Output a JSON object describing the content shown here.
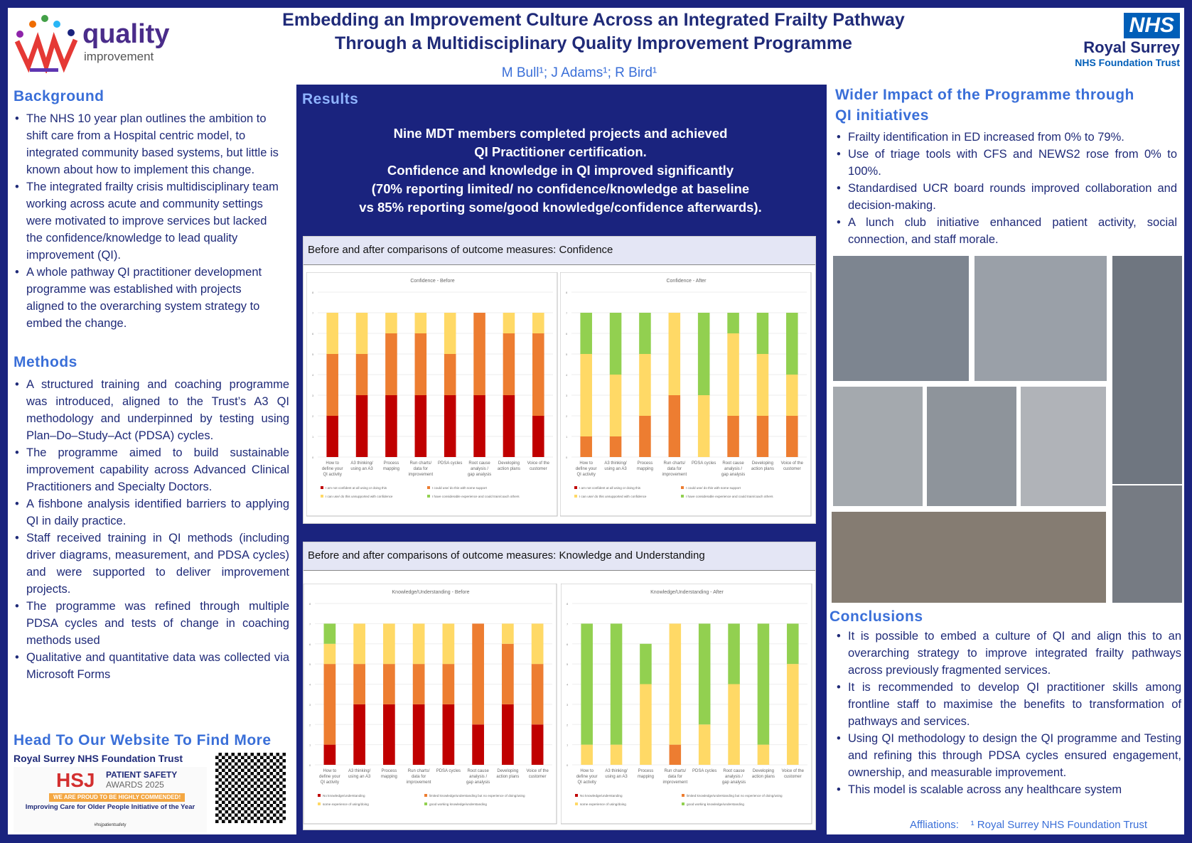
{
  "header": {
    "title_line1": "Embedding an Improvement Culture Across an Integrated Frailty Pathway",
    "title_line2": "Through a Multidisciplinary Quality Improvement Programme",
    "authors": "M Bull¹; J Adams¹;  R Bird¹",
    "qi_logo": {
      "word1": "quality",
      "word2": "improvement"
    },
    "nhs_logo": {
      "badge": "NHS",
      "name": "Royal Surrey",
      "sub": "NHS Foundation Trust"
    }
  },
  "background": {
    "heading": "Background",
    "items": [
      "The NHS 10 year plan outlines the ambition to shift care from a Hospital centric model, to integrated community based systems, but little is known about how to implement this change.",
      "The integrated frailty crisis multidisciplinary team working across acute and community settings were motivated to improve services but lacked the confidence/knowledge to lead quality improvement (QI).",
      "A whole pathway QI practitioner development programme was established with projects aligned to the overarching system strategy to embed the change."
    ]
  },
  "methods": {
    "heading": "Methods",
    "items": [
      "A structured training and coaching programme was introduced, aligned to the Trust’s A3 QI methodology and underpinned by testing using Plan–Do–Study–Act (PDSA) cycles.",
      "The programme aimed to build sustainable improvement capability across Advanced Clinical Practitioners and Specialty Doctors.",
      "A fishbone analysis identified barriers to applying QI in daily practice.",
      "Staff received training in QI methods (including driver diagrams, measurement, and PDSA cycles) and were supported to deliver improvement projects.",
      "The programme was refined through multiple PDSA cycles and tests of change in coaching methods used",
      "Qualitative and quantitative data was collected via Microsoft Forms"
    ]
  },
  "website": {
    "heading": "Head To Our Website To Find More",
    "trust": "Royal Surrey NHS Foundation Trust",
    "award": {
      "hsj": "HSJ",
      "line1": "PATIENT SAFETY",
      "line2": "AWARDS 2025",
      "banner": "WE ARE PROUD TO BE HIGHLY COMMENDED!",
      "category": "Improving Care for Older People Initiative of the Year",
      "hashtag": "#hsjpatientsafety"
    }
  },
  "results": {
    "heading": "Results",
    "lines": [
      "Nine MDT members completed projects and achieved",
      "QI Practitioner certification.",
      "Confidence and knowledge in QI improved significantly",
      "(70% reporting limited/ no confidence/knowledge at baseline",
      "vs 85% reporting some/good knowledge/confidence afterwards)."
    ],
    "panel1_title": "Before and after comparisons of outcome measures: Confidence",
    "panel2_title": "Before and after comparisons of outcome measures: Knowledge and Understanding"
  },
  "colors": {
    "red": "#c00000",
    "orange": "#ed7d31",
    "yellow": "#ffd966",
    "green": "#92d050",
    "navy": "#1a237e",
    "accent": "#3a6fd8"
  },
  "chart_data": [
    {
      "type": "bar",
      "stacked": true,
      "title": "Confidence - Before",
      "ylim": [
        0,
        8
      ],
      "categories": [
        "How to define your QI activity",
        "A3 thinking/ using an A3",
        "Process mapping",
        "Run charts/ data for improvement",
        "PDSA cycles",
        "Root cause analysis / gap analysis",
        "Developing action plans",
        "Voice of the customer"
      ],
      "series": [
        {
          "name": "I am not confident at all using or doing this",
          "values": [
            2,
            3,
            3,
            3,
            3,
            3,
            3,
            2
          ]
        },
        {
          "name": "I could use/ do this with some support",
          "values": [
            3,
            2,
            3,
            3,
            2,
            4,
            3,
            4
          ]
        },
        {
          "name": "I can use/ do this unsupported with confidence",
          "values": [
            2,
            2,
            1,
            1,
            2,
            0,
            1,
            1
          ]
        },
        {
          "name": "I have considerable experience and could train/coach others",
          "values": [
            0,
            0,
            0,
            0,
            0,
            0,
            0,
            0
          ]
        }
      ]
    },
    {
      "type": "bar",
      "stacked": true,
      "title": "Confidence - After",
      "ylim": [
        0,
        8
      ],
      "categories": [
        "How to define your QI activity",
        "A3 thinking/ using an A3",
        "Process mapping",
        "Run charts/ data for improvement",
        "PDSA cycles",
        "Root cause analysis / gap analysis",
        "Developing action plans",
        "Voice of the customer"
      ],
      "series": [
        {
          "name": "I am not confident at all using or doing this",
          "values": [
            0,
            0,
            0,
            0,
            0,
            0,
            0,
            0
          ]
        },
        {
          "name": "I could use/ do this with some support",
          "values": [
            1,
            1,
            2,
            3,
            0,
            2,
            2,
            2
          ]
        },
        {
          "name": "I can use/ do this unsupported with confidence",
          "values": [
            4,
            3,
            3,
            4,
            3,
            4,
            3,
            2
          ]
        },
        {
          "name": "I have considerable experience and could train/coach others",
          "values": [
            2,
            3,
            2,
            0,
            4,
            1,
            2,
            3
          ]
        }
      ]
    },
    {
      "type": "bar",
      "stacked": true,
      "title": "Knowledge/Understanding - Before",
      "ylim": [
        0,
        8
      ],
      "categories": [
        "How to define your QI activity",
        "A3 thinking/ using an A3",
        "Process mapping",
        "Run charts/ data for improvement",
        "PDSA cycles",
        "Root cause analysis / gap analysis",
        "Developing action plans",
        "Voice of the customer"
      ],
      "series": [
        {
          "name": "No knowledge/understanding",
          "values": [
            1,
            3,
            3,
            3,
            3,
            2,
            3,
            2
          ]
        },
        {
          "name": "limited knowledge/understanding but no experience of doing/using",
          "values": [
            4,
            2,
            2,
            2,
            2,
            5,
            3,
            3
          ]
        },
        {
          "name": "some experience of using/doing",
          "values": [
            1,
            2,
            2,
            2,
            2,
            0,
            1,
            2
          ]
        },
        {
          "name": "good working knowledge/understanding",
          "values": [
            1,
            0,
            0,
            0,
            0,
            0,
            0,
            0
          ]
        }
      ]
    },
    {
      "type": "bar",
      "stacked": true,
      "title": "Knowledge/Understanding - After",
      "ylim": [
        0,
        8
      ],
      "categories": [
        "How to define your QI activity",
        "A3 thinking/ using an A3",
        "Process mapping",
        "Run charts/ data for improvement",
        "PDSA cycles",
        "Root cause analysis / gap analysis",
        "Developing action plans",
        "Voice of the customer"
      ],
      "series": [
        {
          "name": "No knowledge/understanding",
          "values": [
            0,
            0,
            0,
            0,
            0,
            0,
            0,
            0
          ]
        },
        {
          "name": "limited knowledge/understanding but no experience of doing/using",
          "values": [
            0,
            0,
            0,
            1,
            0,
            0,
            0,
            0
          ]
        },
        {
          "name": "some experience of using/doing",
          "values": [
            1,
            1,
            4,
            6,
            2,
            4,
            1,
            5
          ]
        },
        {
          "name": "good working knowledge/understanding",
          "values": [
            6,
            6,
            2,
            0,
            5,
            3,
            6,
            2
          ]
        }
      ]
    }
  ],
  "wider": {
    "heading_line1": "Wider Impact of the Programme through",
    "heading_line2": "QI initiatives",
    "items": [
      "Frailty identification in ED increased from 0% to 79%.",
      "Use of triage tools with CFS and NEWS2 rose from 0% to 100%.",
      "Standardised UCR board rounds improved collaboration and decision-making.",
      "A lunch club initiative enhanced patient activity, social connection, and staff morale."
    ]
  },
  "conclusions": {
    "heading": "Conclusions",
    "items": [
      "It is possible to embed a culture of QI and align this to an overarching strategy to improve integrated frailty pathways across previously fragmented services.",
      "It is recommended to develop QI practitioner skills among frontline staff to maximise the benefits to transformation of pathways and services.",
      "Using QI methodology to design the QI programme and Testing and refining this through PDSA cycles ensured engagement, ownership, and measurable improvement.",
      "This model is scalable across any healthcare system"
    ]
  },
  "affiliations": {
    "label": "Affliations:",
    "text": "¹ Royal Surrey NHS Foundation Trust"
  }
}
